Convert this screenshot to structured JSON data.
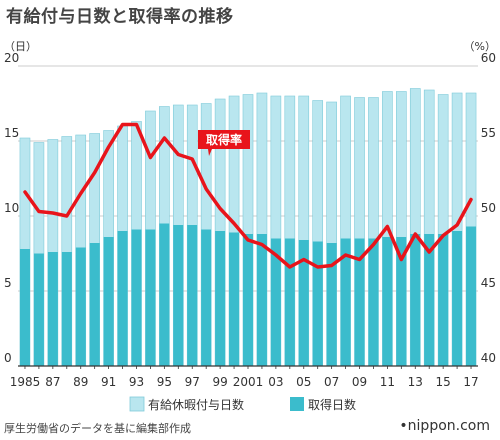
{
  "title": "有給付与日数と取得率の推移",
  "source": "厚生労働省のデータを基に編集部作成",
  "logo": "nippon.com",
  "colors": {
    "granted": "#b9e6ef",
    "granted_border": "#7fcbd9",
    "taken": "#3bbccc",
    "rate": "#e8141b",
    "grid": "#cccccc",
    "axis": "#333333"
  },
  "chart_data": {
    "type": "bar",
    "units": {
      "left": "（日）",
      "right": "（%）"
    },
    "y_left": {
      "range": [
        0,
        20
      ],
      "ticks": [
        0,
        5,
        10,
        15,
        20
      ]
    },
    "y_right": {
      "range": [
        40,
        60
      ],
      "ticks": [
        40,
        45,
        50,
        55,
        60
      ]
    },
    "grid": true,
    "legend_position": "bottom",
    "x_tick_labels": [
      "1985",
      "87",
      "89",
      "91",
      "93",
      "95",
      "97",
      "99",
      "2001",
      "03",
      "05",
      "07",
      "09",
      "11",
      "13",
      "15",
      "17"
    ],
    "categories": [
      1985,
      1986,
      1987,
      1988,
      1989,
      1990,
      1991,
      1992,
      1993,
      1994,
      1995,
      1996,
      1997,
      1998,
      1999,
      2000,
      2001,
      2002,
      2003,
      2004,
      2005,
      2006,
      2007,
      2008,
      2009,
      2010,
      2011,
      2012,
      2013,
      2014,
      2015,
      2016,
      2017
    ],
    "series": [
      {
        "name": "有給休暇付与日数",
        "type": "bar",
        "axis": "left",
        "values": [
          15.2,
          14.9,
          15.1,
          15.3,
          15.4,
          15.5,
          15.7,
          16.0,
          16.3,
          17.0,
          17.3,
          17.4,
          17.4,
          17.5,
          17.8,
          18.0,
          18.1,
          18.2,
          18.0,
          18.0,
          18.0,
          17.7,
          17.6,
          18.0,
          17.9,
          17.9,
          18.3,
          18.3,
          18.5,
          18.4,
          18.1,
          18.2,
          18.2
        ]
      },
      {
        "name": "取得日数",
        "type": "bar",
        "axis": "left",
        "values": [
          7.8,
          7.5,
          7.6,
          7.6,
          7.9,
          8.2,
          8.6,
          9.0,
          9.1,
          9.1,
          9.5,
          9.4,
          9.4,
          9.1,
          9.0,
          8.9,
          8.8,
          8.8,
          8.5,
          8.5,
          8.4,
          8.3,
          8.2,
          8.5,
          8.5,
          8.5,
          8.6,
          8.6,
          8.8,
          8.8,
          8.8,
          9.0,
          9.3
        ]
      },
      {
        "name": "取得率",
        "type": "line",
        "axis": "right",
        "label": "取得率",
        "values": [
          51.6,
          50.3,
          50.2,
          50.0,
          51.5,
          52.9,
          54.6,
          56.1,
          56.1,
          53.9,
          55.2,
          54.1,
          53.8,
          51.8,
          50.5,
          49.5,
          48.4,
          48.1,
          47.4,
          46.6,
          47.1,
          46.6,
          46.7,
          47.4,
          47.1,
          48.1,
          49.3,
          47.1,
          48.8,
          47.6,
          48.7,
          49.4,
          51.1
        ]
      }
    ]
  }
}
